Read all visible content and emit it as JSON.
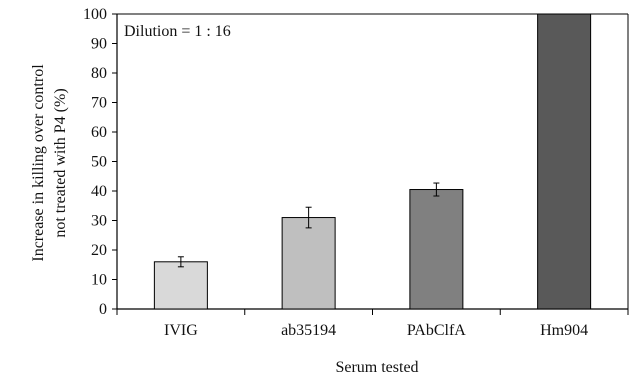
{
  "chart_data": {
    "type": "bar",
    "categories": [
      "IVIG",
      "ab35194",
      "PAbClfA",
      "Hm904"
    ],
    "values": [
      16,
      31,
      40.5,
      100
    ],
    "errors": [
      1.7,
      3.5,
      2.2,
      0
    ],
    "bar_colors": [
      "#d9d9d9",
      "#bfbfbf",
      "#808080",
      "#595959"
    ],
    "xlabel": "Serum tested",
    "ylabel_lines": [
      "Increase in killing over control",
      "not treated with P4 (%)"
    ],
    "annotation": "Dilution = 1 : 16",
    "ylim": [
      0,
      100
    ],
    "yticks": [
      "0",
      "10",
      "20",
      "30",
      "40",
      "50",
      "60",
      "70",
      "80",
      "90",
      "100"
    ],
    "grid": false,
    "legend": "none"
  }
}
